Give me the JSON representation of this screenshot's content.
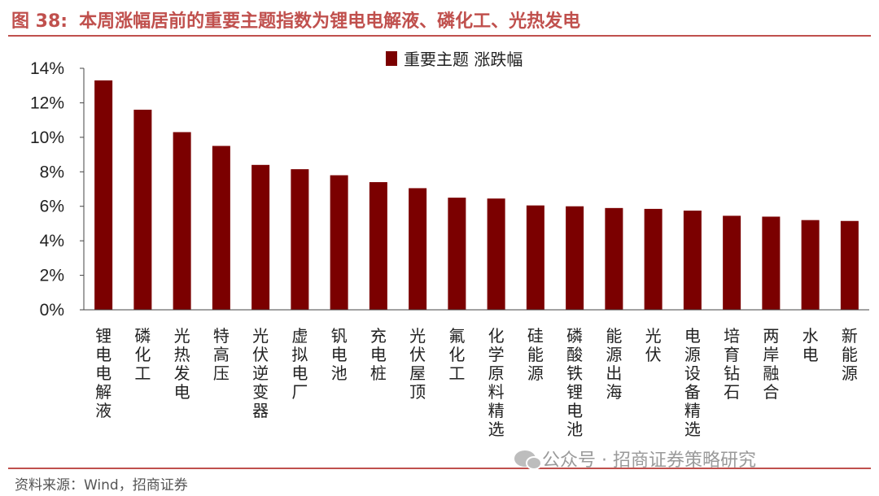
{
  "header": {
    "figure_label": "图 38:",
    "title": "本周涨幅居前的重要主题指数为锂电电解液、磷化工、光热发电"
  },
  "footer": {
    "source": "资料来源：Wind，招商证券",
    "watermark": "公众号 · 招商证券策略研究"
  },
  "colors": {
    "accent": "#c0504d",
    "bar": "#7b0000"
  },
  "chart_data": {
    "type": "bar",
    "title": "",
    "xlabel": "",
    "ylabel": "",
    "legend": "重要主题 涨跌幅",
    "legend_position": "top",
    "grid": false,
    "ylim": [
      0,
      14
    ],
    "yticks": [
      0,
      2,
      4,
      6,
      8,
      10,
      12,
      14
    ],
    "ytick_labels": [
      "0%",
      "2%",
      "4%",
      "6%",
      "8%",
      "10%",
      "12%",
      "14%"
    ],
    "categories": [
      "锂电电解液",
      "磷化工",
      "光热发电",
      "特高压",
      "光伏逆变器",
      "虚拟电厂",
      "钒电池",
      "充电桩",
      "光伏屋顶",
      "氟化工",
      "化学原料精选",
      "硅能源",
      "磷酸铁锂电池",
      "能源出海",
      "光伏",
      "电源设备精选",
      "培育钻石",
      "两岸融合",
      "水电",
      "新能源"
    ],
    "series": [
      {
        "name": "重要主题 涨跌幅",
        "values": [
          13.3,
          11.6,
          10.3,
          9.5,
          8.4,
          8.15,
          7.8,
          7.4,
          7.05,
          6.5,
          6.45,
          6.05,
          6.0,
          5.9,
          5.85,
          5.75,
          5.45,
          5.4,
          5.2,
          5.15
        ]
      }
    ]
  }
}
